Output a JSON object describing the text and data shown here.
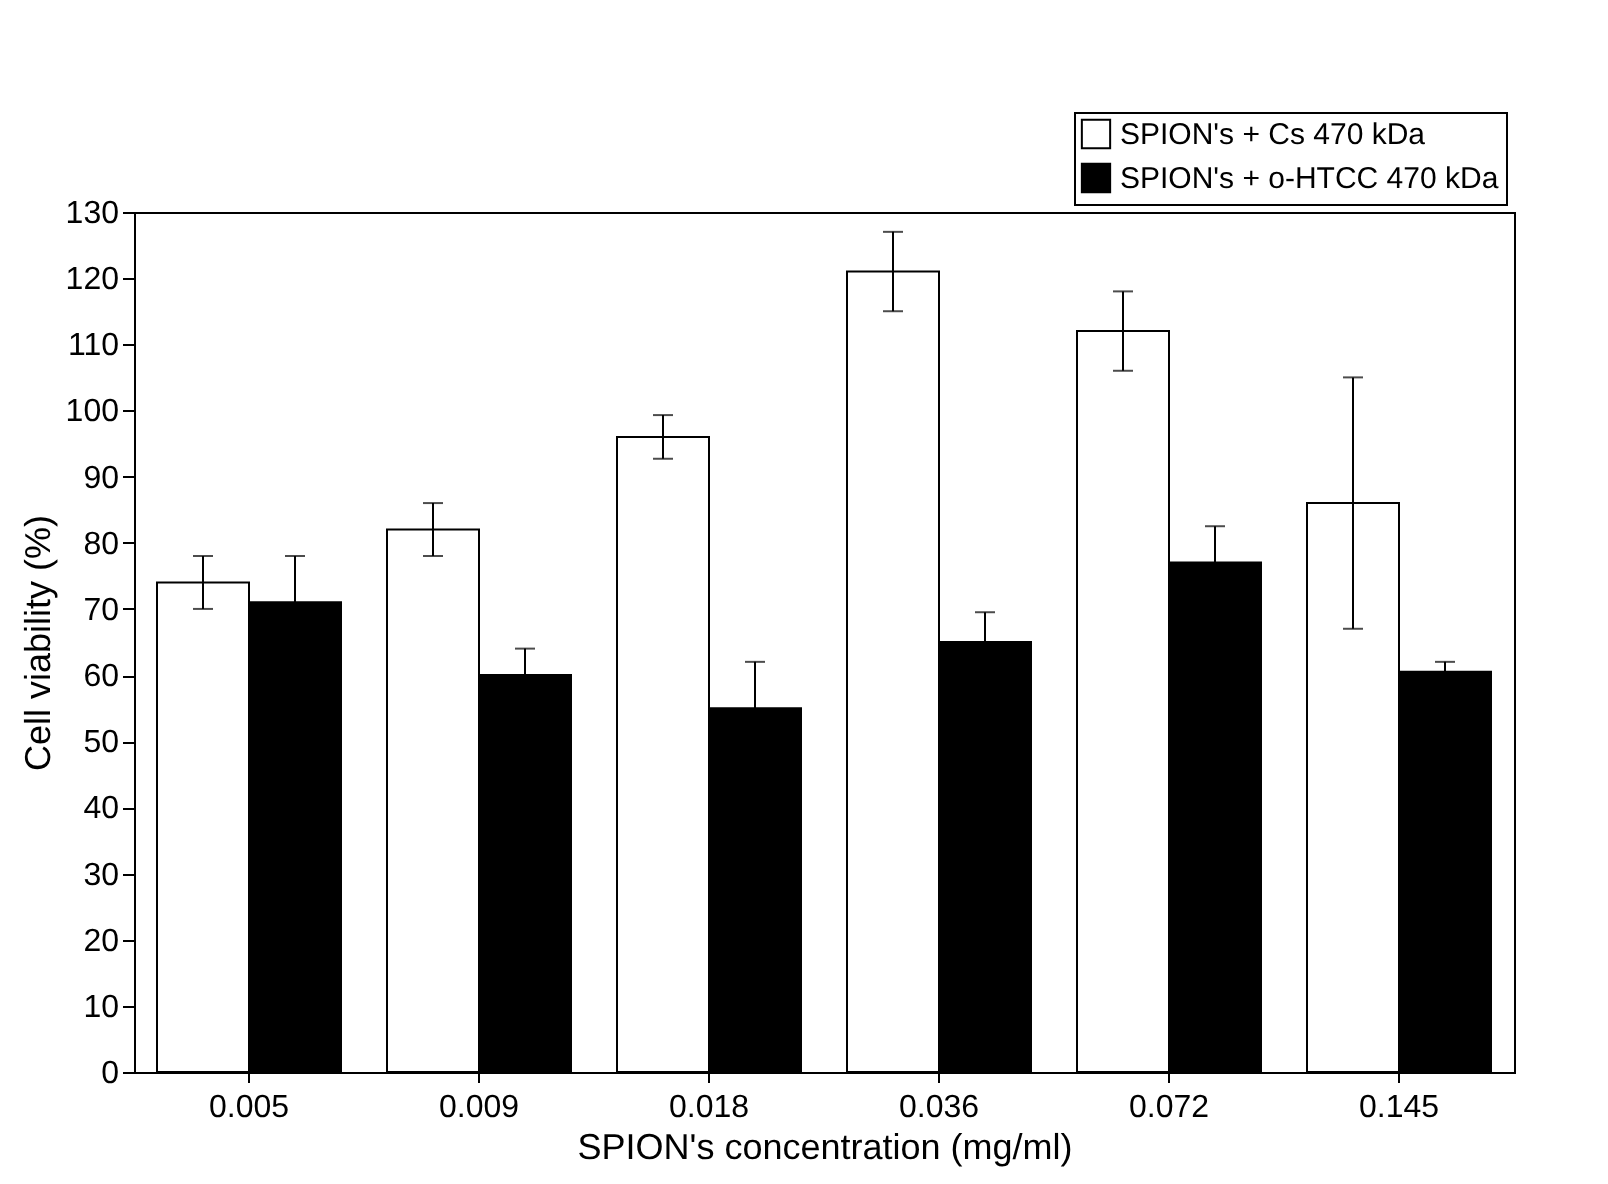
{
  "chart_data": {
    "type": "bar",
    "xlabel": "SPION's concentration (mg/ml)",
    "ylabel": "Cell viability (%)",
    "categories": [
      "0.005",
      "0.009",
      "0.018",
      "0.036",
      "0.072",
      "0.145"
    ],
    "series": [
      {
        "name": "SPION's + Cs 470 kDa",
        "color": "#ffffff",
        "values": [
          74,
          82,
          96,
          121,
          112,
          86
        ],
        "errors": [
          4,
          4,
          3.3,
          6,
          6,
          19
        ]
      },
      {
        "name": "SPION's + o-HTCC 470 kDa",
        "color": "#000000",
        "values": [
          71,
          60,
          55,
          65,
          77,
          60.5
        ],
        "errors": [
          7,
          4,
          7,
          4.5,
          5.5,
          1.5
        ]
      }
    ],
    "ylim": [
      0,
      130
    ],
    "yticks": [
      0,
      10,
      20,
      30,
      40,
      50,
      60,
      70,
      80,
      90,
      100,
      110,
      120,
      130
    ],
    "grid": false,
    "legend": "top right"
  }
}
